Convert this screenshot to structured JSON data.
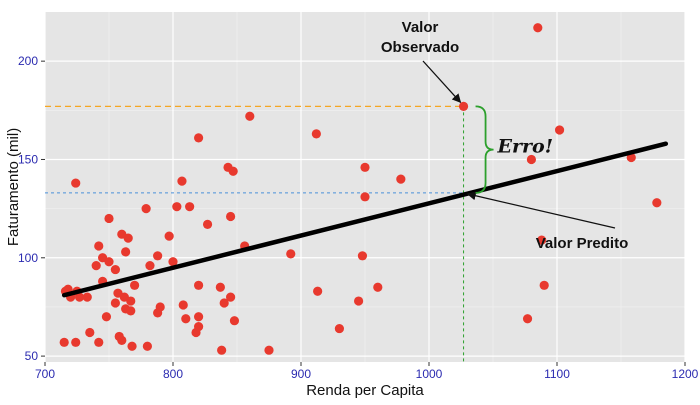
{
  "chart_data": {
    "type": "scatter",
    "title": "",
    "xlabel": "Renda per Capita",
    "ylabel": "Faturamento (mil)",
    "xlim": [
      700,
      1200
    ],
    "ylim": [
      47,
      225
    ],
    "xticks": [
      700,
      800,
      900,
      1000,
      1100,
      1200
    ],
    "yticks": [
      50,
      100,
      150,
      200
    ],
    "grid": true,
    "background": "#e5e5e5",
    "point_color": "#e8392e",
    "line_color": "#000000",
    "regression_line": {
      "x": [
        715,
        1185
      ],
      "y": [
        81,
        158
      ]
    },
    "highlight": {
      "x": 1027,
      "y_observed": 177,
      "y_predicted": 133,
      "observed_label": "Valor Observado",
      "predicted_label": "Valor Predito",
      "error_label": "Erro!",
      "observed_guide_color": "#f5a623",
      "predicted_guide_color": "#4a90d9",
      "vertical_guide_color": "#2ca02c",
      "brace_color": "#2ca02c"
    },
    "points": [
      [
        1085,
        217
      ],
      [
        1027,
        177
      ],
      [
        860,
        172
      ],
      [
        912,
        163
      ],
      [
        820,
        161
      ],
      [
        1102,
        165
      ],
      [
        1080,
        150
      ],
      [
        1158,
        151
      ],
      [
        950,
        146
      ],
      [
        843,
        146
      ],
      [
        847,
        144
      ],
      [
        978,
        140
      ],
      [
        807,
        139
      ],
      [
        724,
        138
      ],
      [
        1178,
        128
      ],
      [
        950,
        131
      ],
      [
        803,
        126
      ],
      [
        813,
        126
      ],
      [
        779,
        125
      ],
      [
        845,
        121
      ],
      [
        750,
        120
      ],
      [
        827,
        117
      ],
      [
        760,
        112
      ],
      [
        765,
        110
      ],
      [
        797,
        111
      ],
      [
        1088,
        109
      ],
      [
        742,
        106
      ],
      [
        856,
        106
      ],
      [
        763,
        103
      ],
      [
        788,
        101
      ],
      [
        800,
        98
      ],
      [
        745,
        100
      ],
      [
        750,
        98
      ],
      [
        892,
        102
      ],
      [
        948,
        101
      ],
      [
        782,
        96
      ],
      [
        740,
        96
      ],
      [
        755,
        94
      ],
      [
        745,
        88
      ],
      [
        770,
        86
      ],
      [
        718,
        84
      ],
      [
        716,
        83
      ],
      [
        720,
        81
      ],
      [
        1090,
        86
      ],
      [
        913,
        83
      ],
      [
        960,
        85
      ],
      [
        820,
        86
      ],
      [
        837,
        85
      ],
      [
        845,
        80
      ],
      [
        727,
        80
      ],
      [
        733,
        80
      ],
      [
        757,
        82
      ],
      [
        762,
        80
      ],
      [
        767,
        78
      ],
      [
        840,
        77
      ],
      [
        808,
        76
      ],
      [
        790,
        75
      ],
      [
        755,
        77
      ],
      [
        788,
        72
      ],
      [
        763,
        74
      ],
      [
        767,
        73
      ],
      [
        810,
        69
      ],
      [
        820,
        70
      ],
      [
        848,
        68
      ],
      [
        945,
        78
      ],
      [
        720,
        80
      ],
      [
        725,
        83
      ],
      [
        735,
        62
      ],
      [
        715,
        57
      ],
      [
        724,
        57
      ],
      [
        742,
        57
      ],
      [
        758,
        60
      ],
      [
        780,
        55
      ],
      [
        768,
        55
      ],
      [
        818,
        62
      ],
      [
        820,
        65
      ],
      [
        838,
        53
      ],
      [
        875,
        53
      ],
      [
        930,
        64
      ],
      [
        1077,
        69
      ],
      [
        760,
        58
      ],
      [
        748,
        70
      ]
    ]
  }
}
